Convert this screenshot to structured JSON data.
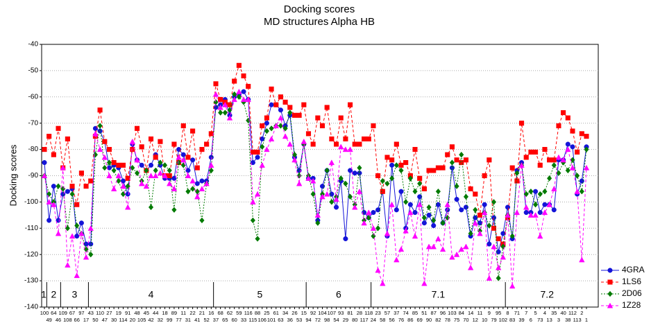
{
  "chart_data": {
    "type": "line",
    "title": "Docking scores",
    "subtitle": "MD structures Alpha HB",
    "y_label": "Docking scores",
    "ylim": [
      -140,
      -40
    ],
    "yticks": [
      -140,
      -130,
      -120,
      -110,
      -100,
      -90,
      -80,
      -70,
      -60,
      -50,
      -40
    ],
    "grid": true,
    "legend_position": "right",
    "cluster_labels": [
      "1",
      "2",
      "3",
      "4",
      "5",
      "6",
      "7.1",
      "7.2"
    ],
    "categories": [
      "100",
      "49",
      "64",
      "46",
      "109",
      "108",
      "67",
      "66",
      "97",
      "17",
      "43",
      "50",
      "110",
      "47",
      "27",
      "30",
      "19",
      "114",
      "91",
      "20",
      "48",
      "105",
      "45",
      "42",
      "44",
      "32",
      "18",
      "99",
      "89",
      "77",
      "11",
      "31",
      "22",
      "41",
      "21",
      "52",
      "16",
      "37",
      "68",
      "65",
      "62",
      "60",
      "59",
      "33",
      "116",
      "115",
      "88",
      "106",
      "25",
      "101",
      "61",
      "63",
      "34",
      "36",
      "26",
      "53",
      "15",
      "94",
      "92",
      "72",
      "104",
      "98",
      "107",
      "54",
      "93",
      "29",
      "81",
      "80",
      "28",
      "117",
      "118",
      "24",
      "23",
      "58",
      "57",
      "56",
      "37",
      "76",
      "74",
      "86",
      "85",
      "69",
      "51",
      "90",
      "87",
      "82",
      "96",
      "78",
      "103",
      "75",
      "84",
      "70",
      "14",
      "12",
      "11",
      "10",
      "9",
      "79",
      "95",
      "102",
      "8",
      "83",
      "71",
      "39",
      "7",
      "6",
      "5",
      "73",
      "4",
      "13",
      "35",
      "3",
      "40",
      "38",
      "112",
      "113",
      "2",
      "1"
    ],
    "series": [
      {
        "name": "4GRA",
        "color": "#1414d8",
        "marker": "circle",
        "line_style": "solid",
        "values": [
          -85,
          -107,
          -94,
          -107,
          -97,
          -96,
          -95,
          -113,
          -108,
          -116,
          -116,
          -72,
          -73,
          -77,
          -87,
          -86,
          -87,
          -92,
          -97,
          -78,
          -84,
          -86,
          -88,
          -86,
          -82,
          -86,
          -91,
          -91,
          -91,
          -80,
          -82,
          -88,
          -84,
          -93,
          -92,
          -92,
          -83,
          -64,
          -63,
          -61,
          -67,
          -60,
          -59,
          -58,
          -61,
          -85,
          -83,
          -76,
          -70,
          -63,
          -63,
          -65,
          -71,
          -67,
          -83,
          -88,
          -78,
          -91,
          -91,
          -107,
          -94,
          -88,
          -97,
          -102,
          -92,
          -114,
          -88,
          -89,
          -89,
          -104,
          -106,
          -104,
          -103,
          -96,
          -113,
          -86,
          -103,
          -96,
          -110,
          -101,
          -104,
          -98,
          -108,
          -105,
          -109,
          -101,
          -108,
          -103,
          -87,
          -99,
          -103,
          -102,
          -113,
          -106,
          -108,
          -101,
          -116,
          -106,
          -119,
          -112,
          -102,
          -114,
          -88,
          -85,
          -104,
          -104,
          -96,
          -104,
          -101,
          -101,
          -103,
          -84,
          -84,
          -78,
          -79,
          -97,
          -92,
          -79
        ]
      },
      {
        "name": "1LS6",
        "color": "#ff0000",
        "marker": "square",
        "line_style": "dashed",
        "values": [
          -80,
          -75,
          -82,
          -72,
          -87,
          -76,
          -94,
          -101,
          -89,
          -94,
          -92,
          -75,
          -65,
          -77,
          -80,
          -85,
          -86,
          -86,
          -91,
          -80,
          -72,
          -79,
          -88,
          -76,
          -83,
          -77,
          -90,
          -90,
          -78,
          -85,
          -71,
          -83,
          -73,
          -87,
          -80,
          -78,
          -74,
          -55,
          -61,
          -62,
          -63,
          -54,
          -48,
          -52,
          -56,
          -81,
          -81,
          -71,
          -68,
          -57,
          -63,
          -60,
          -62,
          -64,
          -67,
          -67,
          -63,
          -74,
          -78,
          -68,
          -71,
          -64,
          -76,
          -78,
          -68,
          -76,
          -63,
          -78,
          -78,
          -76,
          -76,
          -71,
          -90,
          -96,
          -83,
          -84,
          -78,
          -86,
          -85,
          -90,
          -80,
          -91,
          -95,
          -88,
          -88,
          -87,
          -87,
          -82,
          -79,
          -84,
          -85,
          -84,
          -95,
          -97,
          -105,
          -90,
          -84,
          -110,
          -114,
          -116,
          -106,
          -87,
          -92,
          -70,
          -83,
          -81,
          -81,
          -86,
          -80,
          -84,
          -84,
          -71,
          -66,
          -68,
          -73,
          -81,
          -74,
          -75
        ]
      },
      {
        "name": "2D06",
        "color": "#007a00",
        "marker": "diamond",
        "line_style": "dotted",
        "values": [
          -90,
          -97,
          -100,
          -94,
          -95,
          -110,
          -97,
          -109,
          -112,
          -118,
          -120,
          -82,
          -71,
          -87,
          -85,
          -88,
          -92,
          -97,
          -94,
          -87,
          -89,
          -92,
          -88,
          -102,
          -88,
          -85,
          -86,
          -88,
          -103,
          -85,
          -86,
          -96,
          -95,
          -96,
          -107,
          -93,
          -88,
          -62,
          -66,
          -66,
          -65,
          -59,
          -60,
          -62,
          -69,
          -107,
          -114,
          -79,
          -73,
          -72,
          -71,
          -71,
          -72,
          -66,
          -82,
          -90,
          -78,
          -90,
          -97,
          -108,
          -97,
          -88,
          -100,
          -98,
          -91,
          -93,
          -98,
          -101,
          -87,
          -107,
          -106,
          -113,
          -110,
          -92,
          -93,
          -91,
          -86,
          -88,
          -100,
          -91,
          -96,
          -93,
          -106,
          -102,
          -107,
          -96,
          -108,
          -106,
          -85,
          -94,
          -82,
          -98,
          -112,
          -103,
          -111,
          -104,
          -109,
          -100,
          -129,
          -117,
          -105,
          -113,
          -89,
          -86,
          -97,
          -96,
          -101,
          -97,
          -96,
          -91,
          -86,
          -89,
          -85,
          -88,
          -84,
          -90,
          -96,
          -80
        ]
      },
      {
        "name": "1Z28",
        "color": "#ff00ff",
        "marker": "triangle",
        "line_style": "dashed",
        "values": [
          -90,
          -100,
          -101,
          -112,
          -87,
          -124,
          -113,
          -128,
          -112,
          -121,
          -110,
          -74,
          -80,
          -83,
          -90,
          -95,
          -90,
          -94,
          -102,
          -77,
          -84,
          -93,
          -94,
          -90,
          -90,
          -89,
          -90,
          -93,
          -95,
          -83,
          -84,
          -90,
          -92,
          -98,
          -95,
          -93,
          -86,
          -59,
          -64,
          -63,
          -68,
          -61,
          -58,
          -61,
          -61,
          -100,
          -97,
          -86,
          -80,
          -76,
          -71,
          -68,
          -75,
          -78,
          -84,
          -93,
          -77,
          -91,
          -92,
          -105,
          -98,
          -97,
          -85,
          -99,
          -79,
          -80,
          -80,
          -102,
          -96,
          -108,
          -104,
          -110,
          -126,
          -131,
          -112,
          -101,
          -122,
          -118,
          -111,
          -104,
          -113,
          -101,
          -131,
          -117,
          -117,
          -114,
          -118,
          -101,
          -121,
          -120,
          -118,
          -117,
          -125,
          -108,
          -112,
          -104,
          -129,
          -117,
          -125,
          -121,
          -105,
          -132,
          -104,
          -86,
          -102,
          -105,
          -105,
          -113,
          -104,
          -101,
          -95,
          -83,
          -84,
          -80,
          -87,
          -96,
          -122,
          -87
        ]
      }
    ]
  }
}
